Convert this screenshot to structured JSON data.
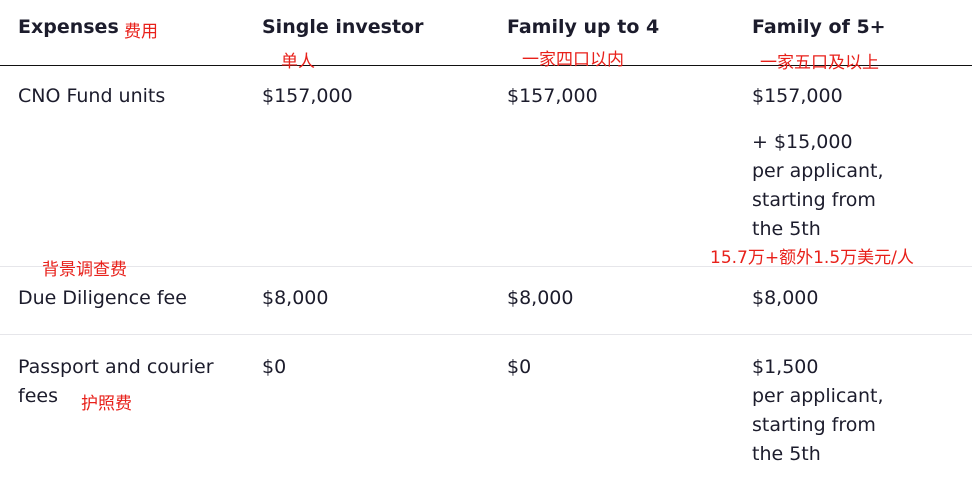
{
  "headers": {
    "expenses": "Expenses",
    "single": "Single investor",
    "family4": "Family up to 4",
    "family5": "Family of 5+"
  },
  "rows": [
    {
      "label": "CNO Fund units",
      "single": "$157,000",
      "family4": "$157,000",
      "family5": "$157,000",
      "family5_extra": [
        "+ $15,000",
        "per applicant,",
        "starting from",
        "the 5th"
      ]
    },
    {
      "label": "Due Diligence fee",
      "single": "$8,000",
      "family4": "$8,000",
      "family5": "$8,000"
    },
    {
      "label_lines": [
        "Passport and courier",
        "fees"
      ],
      "single": "$0",
      "family4": "$0",
      "family5_lines": [
        "$1,500",
        "per applicant,",
        "starting from",
        "the 5th"
      ]
    }
  ],
  "annotations": {
    "expenses": "费用",
    "single": "单人",
    "family4": "一家四口以内",
    "family5": "一家五口及以上",
    "due_diligence": "背景调查费",
    "fund_total": "15.7万+额外1.5万美元/人",
    "passport": "护照费"
  },
  "colors": {
    "text": "#1c1c2c",
    "annotation": "#e8201a",
    "divider": "#e6e6ea",
    "header_rule": "#111111"
  }
}
